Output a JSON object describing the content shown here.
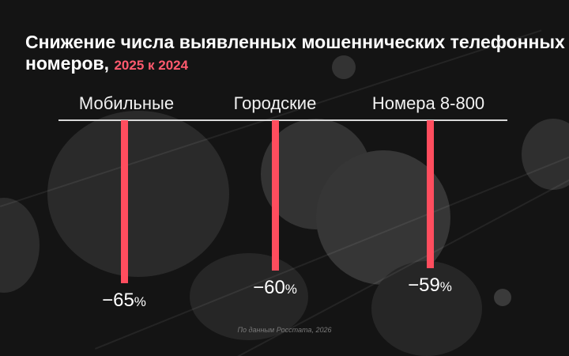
{
  "title_main": "Снижение числа выявленных мошеннических телефонных номеров,",
  "title_accent": "2025 к 2024",
  "source": "По данным Росстата, 2026",
  "colors": {
    "bar": "#ff4d5e",
    "accent": "#ff5a6e",
    "background": "#141414"
  },
  "chart_data": {
    "type": "bar",
    "orientation": "vertical-down",
    "title": "Снижение числа выявленных мошеннических телефонных номеров, 2025 к 2024",
    "categories": [
      "Мобильные",
      "Городские",
      "Номера 8-800"
    ],
    "values": [
      -65,
      -60,
      -59
    ],
    "value_labels": [
      "−65",
      "−60",
      "−59"
    ],
    "unit": "%",
    "ylim": [
      0,
      -65
    ],
    "grid": false,
    "legend": "none"
  }
}
